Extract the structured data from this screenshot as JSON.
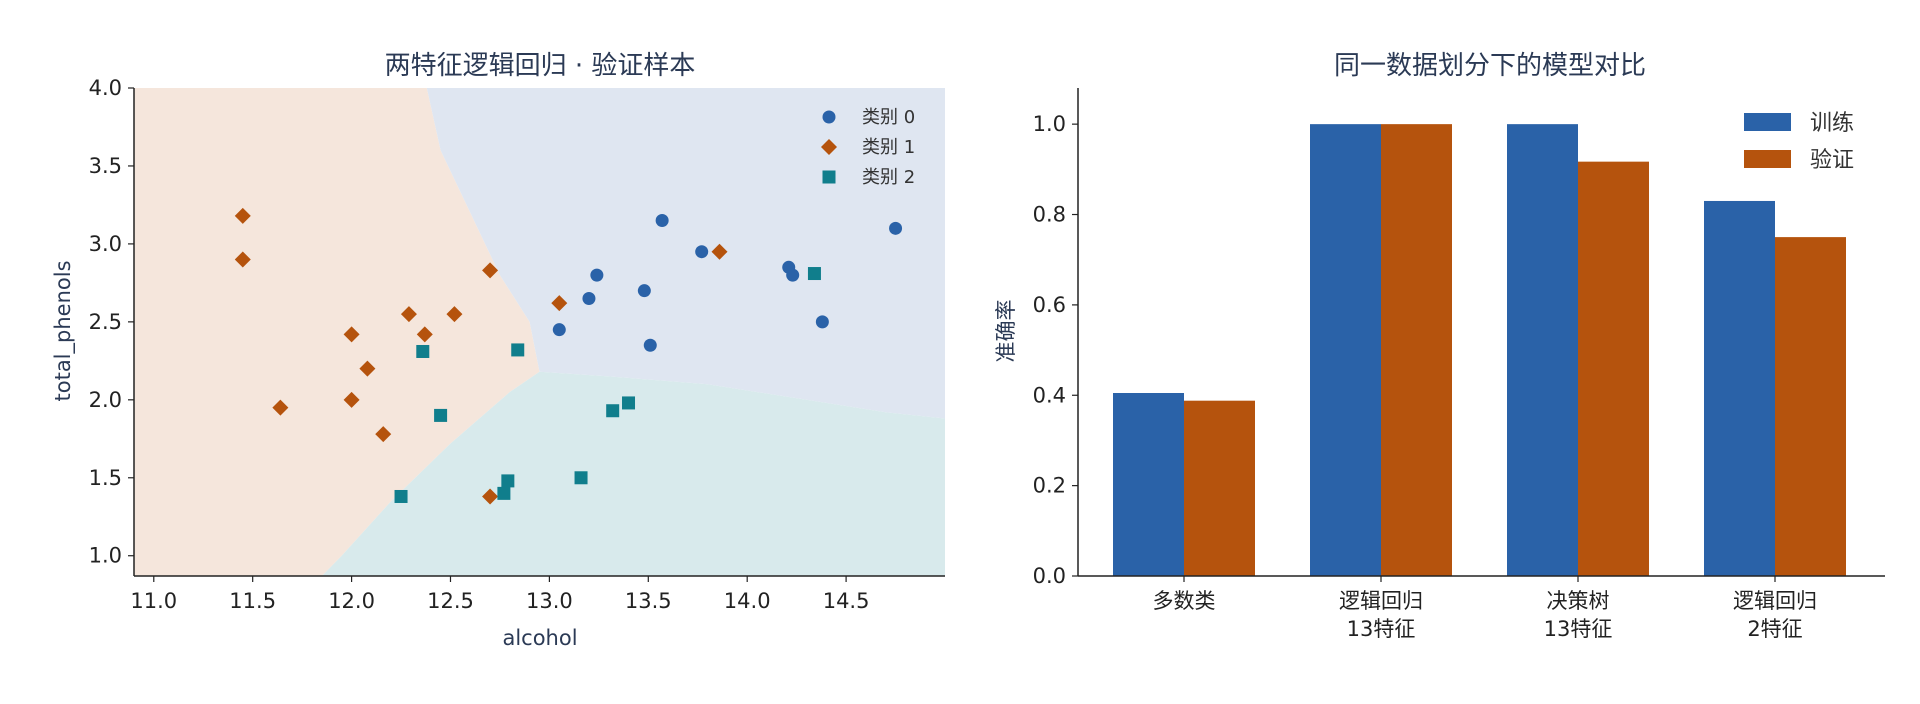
{
  "chart_data": [
    {
      "type": "scatter",
      "title": "两特征逻辑回归 · 验证样本",
      "xlabel": "alcohol",
      "ylabel": "total_phenols",
      "xlim": [
        10.9,
        15.0
      ],
      "ylim": [
        0.87,
        4.0
      ],
      "xticks": [
        "11.0",
        "11.5",
        "12.0",
        "12.5",
        "13.0",
        "13.5",
        "14.0",
        "14.5"
      ],
      "yticks": [
        "1.0",
        "1.5",
        "2.0",
        "2.5",
        "3.0",
        "3.5",
        "4.0"
      ],
      "legend_position": "top-right",
      "region_colors": [
        "#dfe6f1",
        "#f5e6dc",
        "#d8eaec"
      ],
      "series": [
        {
          "name": "类别 0",
          "marker": "circle",
          "color": "#2a62a8",
          "points": [
            [
              13.05,
              2.45
            ],
            [
              13.2,
              2.65
            ],
            [
              13.24,
              2.8
            ],
            [
              13.48,
              2.7
            ],
            [
              13.51,
              2.35
            ],
            [
              13.57,
              3.15
            ],
            [
              13.77,
              2.95
            ],
            [
              14.21,
              2.85
            ],
            [
              14.23,
              2.8
            ],
            [
              14.38,
              2.5
            ],
            [
              14.75,
              3.1
            ]
          ]
        },
        {
          "name": "类别 1",
          "marker": "diamond",
          "color": "#b5530d",
          "points": [
            [
              11.45,
              3.18
            ],
            [
              11.45,
              2.9
            ],
            [
              11.64,
              1.95
            ],
            [
              12.0,
              2.42
            ],
            [
              12.0,
              2.0
            ],
            [
              12.08,
              2.2
            ],
            [
              12.16,
              1.78
            ],
            [
              12.29,
              2.55
            ],
            [
              12.37,
              2.42
            ],
            [
              12.52,
              2.55
            ],
            [
              12.7,
              2.83
            ],
            [
              12.7,
              1.38
            ],
            [
              13.05,
              2.62
            ],
            [
              13.86,
              2.95
            ]
          ]
        },
        {
          "name": "类别 2",
          "marker": "square",
          "color": "#107e8c",
          "points": [
            [
              12.25,
              1.38
            ],
            [
              12.36,
              2.31
            ],
            [
              12.45,
              1.9
            ],
            [
              12.77,
              1.4
            ],
            [
              12.79,
              1.48
            ],
            [
              12.84,
              2.32
            ],
            [
              13.16,
              1.5
            ],
            [
              13.32,
              1.93
            ],
            [
              13.4,
              1.98
            ],
            [
              14.34,
              2.81
            ]
          ]
        }
      ]
    },
    {
      "type": "bar",
      "title": "同一数据划分下的模型对比",
      "xlabel": "",
      "ylabel": "准确率",
      "ylim": [
        0,
        1.08
      ],
      "yticks": [
        "0.0",
        "0.2",
        "0.4",
        "0.6",
        "0.8",
        "1.0"
      ],
      "legend_position": "top-right",
      "categories": [
        [
          "多数类"
        ],
        [
          "逻辑回归",
          "13特征"
        ],
        [
          "决策树",
          "13特征"
        ],
        [
          "逻辑回归",
          "2特征"
        ]
      ],
      "series": [
        {
          "name": "训练",
          "color": "#2a62a8",
          "values": [
            0.405,
            1.0,
            1.0,
            0.83
          ]
        },
        {
          "name": "验证",
          "color": "#b5530d",
          "values": [
            0.388,
            1.0,
            0.917,
            0.75
          ]
        }
      ]
    }
  ]
}
